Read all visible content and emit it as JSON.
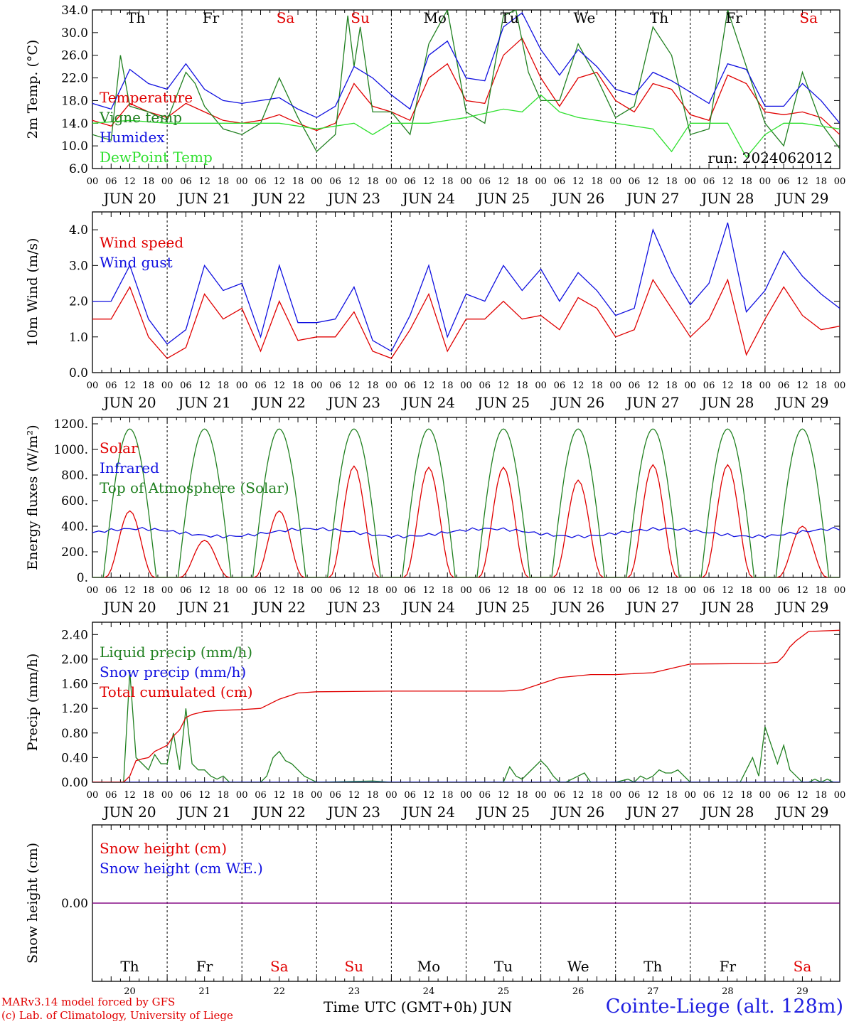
{
  "footer": {
    "credit_line1": "MARv3.14 model forced by GFS",
    "credit_line2": "(c) Lab. of Climatology, University of Liege",
    "xaxis_title": "Time UTC (GMT+0h)",
    "month": "JUN",
    "station": "Cointe-Liege (alt. 128m)"
  },
  "run_label": "run: 2024062012",
  "days": [
    {
      "abbr": "Th",
      "date": "JUN 20",
      "num": "20",
      "weekend": false
    },
    {
      "abbr": "Fr",
      "date": "JUN 21",
      "num": "21",
      "weekend": false
    },
    {
      "abbr": "Sa",
      "date": "JUN 22",
      "num": "22",
      "weekend": true
    },
    {
      "abbr": "Su",
      "date": "JUN 23",
      "num": "23",
      "weekend": true
    },
    {
      "abbr": "Mo",
      "date": "JUN 24",
      "num": "24",
      "weekend": false
    },
    {
      "abbr": "Tu",
      "date": "JUN 25",
      "num": "25",
      "weekend": false
    },
    {
      "abbr": "We",
      "date": "JUN 26",
      "num": "26",
      "weekend": false
    },
    {
      "abbr": "Th",
      "date": "JUN 27",
      "num": "27",
      "weekend": false
    },
    {
      "abbr": "Fr",
      "date": "JUN 28",
      "num": "28",
      "weekend": false
    },
    {
      "abbr": "Sa",
      "date": "JUN 29",
      "num": "29",
      "weekend": true
    }
  ],
  "hour_ticks": [
    "00",
    "06",
    "12",
    "18"
  ],
  "colors": {
    "red": "#e00000",
    "green": "#208020",
    "blue": "#1010e0",
    "lightgreen": "#30e030",
    "weekend": "#e00000",
    "purple": "#800080"
  },
  "chart_data": [
    {
      "type": "line",
      "ylabel": "2m Temp. (°C)",
      "ylim": [
        6,
        34
      ],
      "yticks": [
        "6.0",
        "10.0",
        "14.0",
        "18.0",
        "22.0",
        "26.0",
        "30.0",
        "34.0"
      ],
      "series": [
        {
          "name": "Temperature",
          "color": "#e00000",
          "x": [
            0,
            6,
            12,
            18,
            24,
            30,
            36,
            42,
            48,
            54,
            60,
            66,
            72,
            78,
            84,
            90,
            96,
            102,
            108,
            114,
            120,
            126,
            132,
            138,
            144,
            150,
            156,
            162,
            168,
            174,
            180,
            186,
            192,
            198,
            204,
            210,
            216,
            222,
            228,
            234,
            240
          ],
          "y": [
            14.5,
            13.5,
            17.5,
            16,
            15,
            17.5,
            16,
            14.5,
            14,
            14.5,
            15.5,
            14,
            12.7,
            14,
            21,
            17,
            16,
            14.5,
            22,
            24.5,
            18,
            17.5,
            26,
            29,
            22,
            17,
            22,
            23,
            18,
            16,
            21,
            20,
            15.5,
            14.5,
            22.5,
            21,
            16,
            15.5,
            16,
            15,
            12
          ]
        },
        {
          "name": "Vigne temp",
          "color": "#208020",
          "x": [
            0,
            6,
            9,
            12,
            18,
            24,
            30,
            33,
            36,
            42,
            48,
            54,
            60,
            66,
            72,
            78,
            82,
            84,
            86,
            90,
            96,
            102,
            108,
            114,
            120,
            126,
            132,
            136,
            140,
            144,
            150,
            156,
            162,
            168,
            174,
            180,
            186,
            192,
            198,
            204,
            210,
            216,
            222,
            228,
            234,
            240
          ],
          "y": [
            12,
            11,
            26,
            17,
            16,
            14.5,
            23,
            21,
            17,
            13,
            12,
            14,
            22,
            15,
            9,
            12,
            33,
            24,
            31,
            16,
            16,
            12,
            28,
            34,
            16,
            14,
            33,
            34,
            23,
            18,
            18,
            28,
            22,
            15,
            17,
            31,
            26,
            12,
            13,
            34,
            24,
            14,
            10,
            23,
            14,
            9.5
          ]
        },
        {
          "name": "Humidex",
          "color": "#1010e0",
          "x": [
            0,
            6,
            12,
            18,
            24,
            30,
            36,
            42,
            48,
            54,
            60,
            66,
            72,
            78,
            84,
            90,
            96,
            102,
            108,
            114,
            120,
            126,
            132,
            138,
            144,
            150,
            156,
            162,
            168,
            174,
            180,
            186,
            192,
            198,
            204,
            210,
            216,
            222,
            228,
            234,
            240
          ],
          "y": [
            17.5,
            16.5,
            23.5,
            21,
            20,
            24.5,
            20,
            18,
            17.5,
            18,
            18.5,
            16.5,
            15,
            17,
            24,
            22,
            19,
            16.5,
            26,
            28.5,
            22,
            21.5,
            31,
            33.5,
            27,
            22.5,
            27,
            24,
            20,
            19,
            23,
            21.5,
            19.5,
            17.5,
            24.5,
            23.5,
            17,
            17,
            21,
            18,
            14
          ]
        },
        {
          "name": "DewPoint Temp",
          "color": "#30e030",
          "x": [
            0,
            12,
            24,
            36,
            48,
            60,
            72,
            84,
            90,
            96,
            108,
            120,
            132,
            138,
            144,
            150,
            156,
            168,
            180,
            186,
            192,
            204,
            210,
            216,
            222,
            228,
            240
          ],
          "y": [
            14,
            14.5,
            14,
            14,
            14,
            14,
            13,
            14,
            12,
            14,
            14,
            15,
            16.5,
            16,
            19,
            16,
            15,
            14,
            13,
            9,
            14,
            14,
            8,
            12,
            14,
            14,
            13
          ]
        }
      ],
      "legend_placement": "left"
    },
    {
      "type": "line",
      "ylabel": "10m Wind (m/s)",
      "ylim": [
        0,
        4.5
      ],
      "yticks": [
        "0.0",
        "1.0",
        "2.0",
        "3.0",
        "4.0"
      ],
      "series": [
        {
          "name": "Wind speed",
          "color": "#e00000",
          "x": [
            0,
            6,
            12,
            18,
            24,
            30,
            36,
            42,
            48,
            54,
            60,
            66,
            72,
            78,
            84,
            90,
            96,
            102,
            108,
            114,
            120,
            126,
            132,
            138,
            144,
            150,
            156,
            162,
            168,
            174,
            180,
            186,
            192,
            198,
            204,
            210,
            216,
            222,
            228,
            234,
            240
          ],
          "y": [
            1.5,
            1.5,
            2.4,
            1.0,
            0.4,
            0.7,
            2.2,
            1.5,
            1.8,
            0.6,
            2.0,
            0.9,
            1.0,
            1.0,
            1.7,
            0.6,
            0.4,
            1.2,
            2.2,
            0.6,
            1.5,
            1.5,
            2.0,
            1.5,
            1.6,
            1.2,
            2.1,
            1.8,
            1.0,
            1.2,
            2.6,
            1.8,
            1.0,
            1.5,
            2.6,
            0.5,
            1.5,
            2.4,
            1.6,
            1.2,
            1.3
          ]
        },
        {
          "name": "Wind gust",
          "color": "#1010e0",
          "x": [
            0,
            6,
            12,
            18,
            24,
            30,
            36,
            42,
            48,
            54,
            60,
            66,
            72,
            78,
            84,
            90,
            96,
            102,
            108,
            114,
            120,
            126,
            132,
            138,
            144,
            150,
            156,
            162,
            168,
            174,
            180,
            186,
            192,
            198,
            204,
            210,
            216,
            222,
            228,
            234,
            240
          ],
          "y": [
            2.0,
            2.0,
            3.0,
            1.5,
            0.8,
            1.2,
            3.0,
            2.3,
            2.5,
            1.0,
            3.0,
            1.4,
            1.4,
            1.5,
            2.4,
            0.9,
            0.6,
            1.6,
            3.0,
            1.0,
            2.2,
            2.0,
            3.0,
            2.3,
            2.9,
            2.0,
            2.8,
            2.3,
            1.6,
            1.8,
            4.0,
            2.8,
            1.9,
            2.5,
            4.2,
            1.7,
            2.3,
            3.4,
            2.7,
            2.2,
            1.8
          ]
        }
      ],
      "legend_placement": "top-left"
    },
    {
      "type": "line",
      "ylabel": "Energy fluxes (W/m²)",
      "ylim": [
        0,
        1250
      ],
      "yticks": [
        "0.",
        "200.",
        "400.",
        "600.",
        "800.",
        "1000.",
        "1200."
      ],
      "series": [
        {
          "name": "Solar",
          "color": "#e00000",
          "peaks": [
            520,
            290,
            520,
            870,
            860,
            860,
            760,
            880,
            880,
            400
          ]
        },
        {
          "name": "Infrared",
          "color": "#1010e0",
          "value": 350
        },
        {
          "name": "Top of Atmosphere (Solar)",
          "color": "#208020",
          "peak": 1160
        }
      ],
      "legend_placement": "top-left"
    },
    {
      "type": "line",
      "ylabel": "Precip (mm/h)",
      "ylim": [
        0,
        2.6
      ],
      "yticks": [
        "0.00",
        "0.40",
        "0.80",
        "1.20",
        "1.60",
        "2.00",
        "2.40"
      ],
      "series": [
        {
          "name": "Liquid precip (mm/h)",
          "color": "#208020",
          "x": [
            0,
            6,
            10,
            12,
            14,
            16,
            18,
            20,
            22,
            24,
            26,
            28,
            30,
            32,
            34,
            36,
            38,
            40,
            42,
            44,
            46,
            48,
            50,
            54,
            56,
            58,
            60,
            62,
            64,
            66,
            68,
            70,
            72,
            90,
            96,
            100,
            132,
            134,
            136,
            138,
            140,
            144,
            146,
            148,
            150,
            152,
            154,
            156,
            158,
            160,
            162,
            164,
            168,
            172,
            174,
            176,
            178,
            180,
            182,
            184,
            186,
            188,
            190,
            192,
            196,
            208,
            212,
            214,
            216,
            218,
            220,
            222,
            224,
            226,
            228,
            230,
            232,
            234,
            236,
            238,
            240
          ],
          "y": [
            0,
            0,
            0,
            1.8,
            0.4,
            0.3,
            0.2,
            0.45,
            0.3,
            0.3,
            0.8,
            0.2,
            1.2,
            0.3,
            0.2,
            0.2,
            0.1,
            0.05,
            0.1,
            0,
            0,
            0,
            0,
            0,
            0.1,
            0.4,
            0.5,
            0.35,
            0.3,
            0.2,
            0.1,
            0.05,
            0,
            0.02,
            0,
            0,
            0,
            0.25,
            0.1,
            0.05,
            0.15,
            0.35,
            0.25,
            0.1,
            0,
            0,
            0.05,
            0.1,
            0.15,
            0,
            0,
            0,
            0,
            0.05,
            0,
            0.1,
            0.05,
            0.1,
            0.2,
            0.15,
            0.15,
            0.2,
            0.1,
            0,
            0,
            0,
            0.4,
            0.1,
            0.9,
            0.6,
            0.3,
            0.6,
            0.2,
            0.1,
            0,
            0,
            0.05,
            0,
            0.05,
            0,
            0
          ]
        },
        {
          "name": "Snow precip (mm/h)",
          "color": "#1010e0",
          "value": 0
        },
        {
          "name": "Total cumulated (cm)",
          "color": "#e00000",
          "x": [
            0,
            10,
            12,
            14,
            16,
            18,
            20,
            22,
            24,
            26,
            28,
            30,
            32,
            36,
            42,
            48,
            54,
            60,
            66,
            72,
            96,
            132,
            138,
            144,
            150,
            160,
            168,
            180,
            192,
            216,
            220,
            222,
            224,
            226,
            230,
            240
          ],
          "y": [
            0,
            0,
            0.1,
            0.35,
            0.38,
            0.4,
            0.5,
            0.55,
            0.6,
            0.75,
            0.85,
            1.05,
            1.1,
            1.15,
            1.17,
            1.18,
            1.2,
            1.35,
            1.45,
            1.47,
            1.48,
            1.48,
            1.5,
            1.6,
            1.7,
            1.75,
            1.75,
            1.78,
            1.92,
            1.93,
            1.95,
            2.05,
            2.2,
            2.3,
            2.45,
            2.47
          ]
        }
      ],
      "legend_placement": "top-left"
    },
    {
      "type": "line",
      "ylabel": "Snow height (cm)",
      "ylim": [
        -1,
        1
      ],
      "yticks": [
        "0.00"
      ],
      "series": [
        {
          "name": "Snow height (cm)",
          "color": "#e00000",
          "value": 0
        },
        {
          "name": "Snow height (cm W.E.)",
          "color": "#1010e0",
          "value": 0
        }
      ],
      "legend_placement": "top-left"
    }
  ]
}
